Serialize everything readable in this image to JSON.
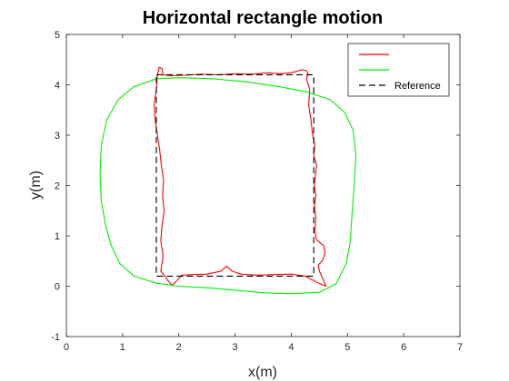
{
  "chart_data": {
    "type": "line",
    "title": "Horizontal rectangle motion",
    "xlabel": "x(m)",
    "ylabel": "y(m)",
    "xlim": [
      0,
      7
    ],
    "ylim": [
      -1,
      5
    ],
    "xticks": [
      "0",
      "1",
      "2",
      "3",
      "4",
      "5",
      "6",
      "7"
    ],
    "yticks": [
      "-1",
      "0",
      "1",
      "2",
      "3",
      "4",
      "5"
    ],
    "grid": false,
    "legend_position": "top-right",
    "series": [
      {
        "name": "",
        "color": "#ff0000",
        "style": "solid",
        "points": [
          [
            1.62,
            4.2
          ],
          [
            1.65,
            4.35
          ],
          [
            1.7,
            4.32
          ],
          [
            1.72,
            4.2
          ],
          [
            1.85,
            4.18
          ],
          [
            2.1,
            4.19
          ],
          [
            2.4,
            4.21
          ],
          [
            2.7,
            4.2
          ],
          [
            3.0,
            4.22
          ],
          [
            3.3,
            4.21
          ],
          [
            3.6,
            4.24
          ],
          [
            3.8,
            4.22
          ],
          [
            4.0,
            4.24
          ],
          [
            4.2,
            4.3
          ],
          [
            4.27,
            4.28
          ],
          [
            4.3,
            4.22
          ],
          [
            4.27,
            4.12
          ],
          [
            4.33,
            3.9
          ],
          [
            4.31,
            3.6
          ],
          [
            4.35,
            3.3
          ],
          [
            4.38,
            3.0
          ],
          [
            4.42,
            2.8
          ],
          [
            4.4,
            2.6
          ],
          [
            4.45,
            2.4
          ],
          [
            4.43,
            2.2
          ],
          [
            4.41,
            2.0
          ],
          [
            4.44,
            1.8
          ],
          [
            4.41,
            1.6
          ],
          [
            4.44,
            1.35
          ],
          [
            4.42,
            1.1
          ],
          [
            4.45,
            0.92
          ],
          [
            4.58,
            0.8
          ],
          [
            4.6,
            0.65
          ],
          [
            4.56,
            0.52
          ],
          [
            4.48,
            0.42
          ],
          [
            4.5,
            0.3
          ],
          [
            4.56,
            0.15
          ],
          [
            4.62,
            0.0
          ],
          [
            4.45,
            0.08
          ],
          [
            4.25,
            0.2
          ],
          [
            4.0,
            0.24
          ],
          [
            3.7,
            0.23
          ],
          [
            3.4,
            0.22
          ],
          [
            3.1,
            0.24
          ],
          [
            2.95,
            0.3
          ],
          [
            2.85,
            0.4
          ],
          [
            2.75,
            0.3
          ],
          [
            2.5,
            0.24
          ],
          [
            2.25,
            0.23
          ],
          [
            2.05,
            0.22
          ],
          [
            2.0,
            0.15
          ],
          [
            1.92,
            0.06
          ],
          [
            1.88,
            0.02
          ],
          [
            1.8,
            0.12
          ],
          [
            1.75,
            0.2
          ],
          [
            1.68,
            0.3
          ],
          [
            1.72,
            0.6
          ],
          [
            1.68,
            0.9
          ],
          [
            1.7,
            1.2
          ],
          [
            1.74,
            1.5
          ],
          [
            1.71,
            1.8
          ],
          [
            1.73,
            2.1
          ],
          [
            1.69,
            2.4
          ],
          [
            1.66,
            2.7
          ],
          [
            1.62,
            3.0
          ],
          [
            1.58,
            3.3
          ],
          [
            1.56,
            3.6
          ],
          [
            1.6,
            3.9
          ],
          [
            1.62,
            4.2
          ]
        ]
      },
      {
        "name": "",
        "color": "#00ee00",
        "style": "solid",
        "points": [
          [
            1.6,
            4.12
          ],
          [
            2.0,
            4.14
          ],
          [
            2.6,
            4.12
          ],
          [
            3.2,
            4.06
          ],
          [
            3.8,
            3.96
          ],
          [
            4.3,
            3.85
          ],
          [
            4.7,
            3.7
          ],
          [
            4.95,
            3.45
          ],
          [
            5.1,
            3.1
          ],
          [
            5.15,
            2.6
          ],
          [
            5.12,
            2.0
          ],
          [
            5.08,
            1.4
          ],
          [
            5.05,
            0.9
          ],
          [
            4.98,
            0.45
          ],
          [
            4.8,
            0.05
          ],
          [
            4.5,
            -0.12
          ],
          [
            4.0,
            -0.15
          ],
          [
            3.5,
            -0.13
          ],
          [
            3.0,
            -0.08
          ],
          [
            2.5,
            -0.03
          ],
          [
            2.0,
            0.0
          ],
          [
            1.6,
            0.06
          ],
          [
            1.2,
            0.2
          ],
          [
            0.95,
            0.45
          ],
          [
            0.8,
            0.8
          ],
          [
            0.7,
            1.2
          ],
          [
            0.62,
            1.7
          ],
          [
            0.6,
            2.2
          ],
          [
            0.62,
            2.8
          ],
          [
            0.72,
            3.3
          ],
          [
            0.92,
            3.7
          ],
          [
            1.2,
            3.96
          ],
          [
            1.6,
            4.12
          ]
        ]
      },
      {
        "name": "Reference",
        "color": "#000000",
        "style": "dashed",
        "points": [
          [
            1.6,
            4.2
          ],
          [
            4.4,
            4.2
          ],
          [
            4.4,
            0.2
          ],
          [
            1.6,
            0.2
          ],
          [
            1.6,
            4.2
          ]
        ]
      }
    ]
  }
}
